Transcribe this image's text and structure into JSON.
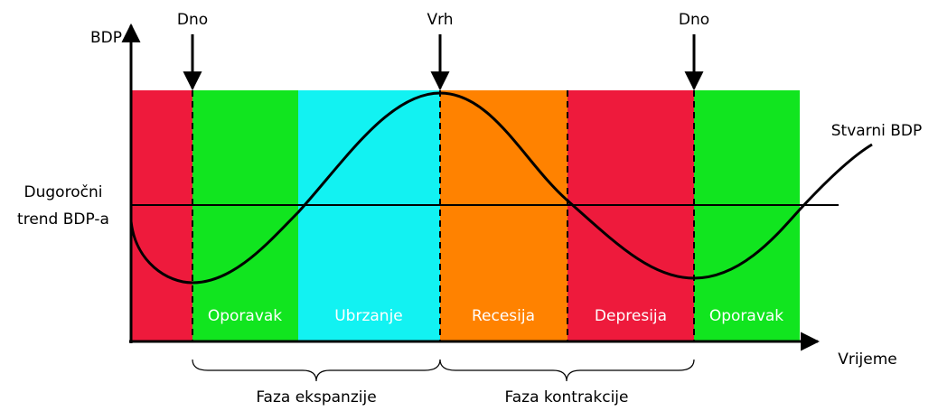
{
  "axes": {
    "y_label": "BDP",
    "x_label": "Vrijeme"
  },
  "markers": [
    {
      "label": "Dno"
    },
    {
      "label": "Vrh"
    },
    {
      "label": "Dno"
    }
  ],
  "trend_label": [
    "Dugoročni",
    "trend BDP-a"
  ],
  "curve_label": "Stvarni BDP",
  "phases": [
    {
      "label": "Oporavak"
    },
    {
      "label": "Ubrzanje"
    },
    {
      "label": "Recesija"
    },
    {
      "label": "Depresija"
    },
    {
      "label": "Oporavak"
    }
  ],
  "groups": [
    {
      "label": "Faza ekspanzije"
    },
    {
      "label": "Faza kontrakcije"
    }
  ]
}
